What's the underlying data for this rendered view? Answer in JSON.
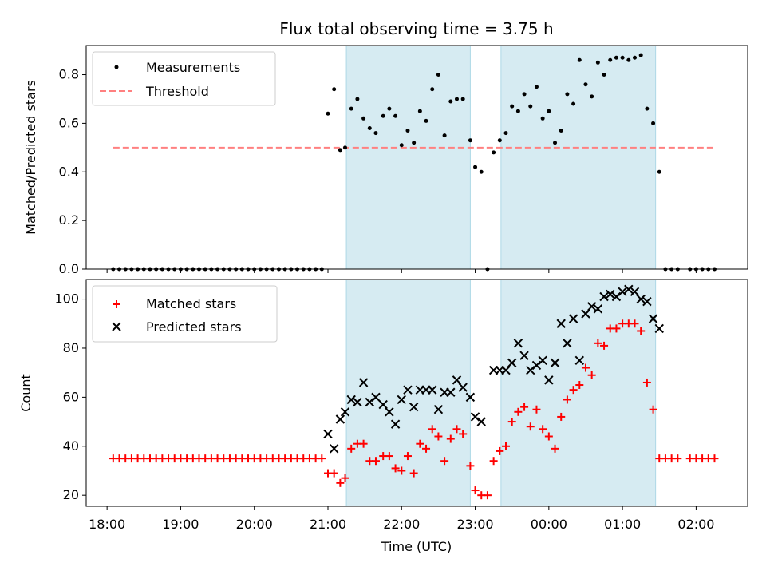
{
  "chart_data": [
    {
      "panel": "top",
      "type": "scatter",
      "title": "Flux total observing time = 3.75 h",
      "ylabel": "Matched/Predicted stars",
      "ylim": [
        0,
        0.92
      ],
      "yticks": [
        "0.0",
        "0.2",
        "0.4",
        "0.6",
        "0.8"
      ],
      "threshold": 0.5,
      "shaded_spans": [
        [
          "21:15",
          "22:56"
        ],
        [
          "23:21",
          "01:27"
        ]
      ],
      "legend": {
        "placement": "upper-left",
        "entries": [
          "Measurements",
          "Threshold"
        ]
      },
      "series": [
        {
          "name": "Measurements",
          "points": [
            [
              "18:05",
              0
            ],
            [
              "18:10",
              0
            ],
            [
              "18:15",
              0
            ],
            [
              "18:20",
              0
            ],
            [
              "18:25",
              0
            ],
            [
              "18:30",
              0
            ],
            [
              "18:35",
              0
            ],
            [
              "18:40",
              0
            ],
            [
              "18:45",
              0
            ],
            [
              "18:50",
              0
            ],
            [
              "18:55",
              0
            ],
            [
              "19:00",
              0
            ],
            [
              "19:05",
              0
            ],
            [
              "19:10",
              0
            ],
            [
              "19:15",
              0
            ],
            [
              "19:20",
              0
            ],
            [
              "19:25",
              0
            ],
            [
              "19:30",
              0
            ],
            [
              "19:35",
              0
            ],
            [
              "19:40",
              0
            ],
            [
              "19:45",
              0
            ],
            [
              "19:50",
              0
            ],
            [
              "19:55",
              0
            ],
            [
              "20:00",
              0
            ],
            [
              "20:05",
              0
            ],
            [
              "20:10",
              0
            ],
            [
              "20:15",
              0
            ],
            [
              "20:20",
              0
            ],
            [
              "20:25",
              0
            ],
            [
              "20:30",
              0
            ],
            [
              "20:35",
              0
            ],
            [
              "20:40",
              0
            ],
            [
              "20:45",
              0
            ],
            [
              "20:50",
              0
            ],
            [
              "20:55",
              0
            ],
            [
              "21:00",
              0.64
            ],
            [
              "21:05",
              0.74
            ],
            [
              "21:10",
              0.49
            ],
            [
              "21:14",
              0.5
            ],
            [
              "21:19",
              0.66
            ],
            [
              "21:24",
              0.7
            ],
            [
              "21:29",
              0.62
            ],
            [
              "21:34",
              0.58
            ],
            [
              "21:39",
              0.56
            ],
            [
              "21:45",
              0.63
            ],
            [
              "21:50",
              0.66
            ],
            [
              "21:55",
              0.63
            ],
            [
              "22:00",
              0.51
            ],
            [
              "22:05",
              0.57
            ],
            [
              "22:10",
              0.52
            ],
            [
              "22:15",
              0.65
            ],
            [
              "22:20",
              0.61
            ],
            [
              "22:25",
              0.74
            ],
            [
              "22:30",
              0.8
            ],
            [
              "22:35",
              0.55
            ],
            [
              "22:40",
              0.69
            ],
            [
              "22:45",
              0.7
            ],
            [
              "22:50",
              0.7
            ],
            [
              "22:56",
              0.53
            ],
            [
              "23:00",
              0.42
            ],
            [
              "23:05",
              0.4
            ],
            [
              "23:10",
              0
            ],
            [
              "23:15",
              0.48
            ],
            [
              "23:20",
              0.53
            ],
            [
              "23:25",
              0.56
            ],
            [
              "23:30",
              0.67
            ],
            [
              "23:35",
              0.65
            ],
            [
              "23:40",
              0.72
            ],
            [
              "23:45",
              0.67
            ],
            [
              "23:50",
              0.75
            ],
            [
              "23:55",
              0.62
            ],
            [
              "00:00",
              0.65
            ],
            [
              "00:05",
              0.52
            ],
            [
              "00:10",
              0.57
            ],
            [
              "00:15",
              0.72
            ],
            [
              "00:20",
              0.68
            ],
            [
              "00:25",
              0.86
            ],
            [
              "00:30",
              0.76
            ],
            [
              "00:35",
              0.71
            ],
            [
              "00:40",
              0.85
            ],
            [
              "00:45",
              0.8
            ],
            [
              "00:50",
              0.86
            ],
            [
              "00:55",
              0.87
            ],
            [
              "01:00",
              0.87
            ],
            [
              "01:05",
              0.86
            ],
            [
              "01:10",
              0.87
            ],
            [
              "01:15",
              0.88
            ],
            [
              "01:20",
              0.66
            ],
            [
              "01:25",
              0.6
            ],
            [
              "01:30",
              0.4
            ],
            [
              "01:35",
              0
            ],
            [
              "01:40",
              0
            ],
            [
              "01:45",
              0
            ],
            [
              "01:55",
              0
            ],
            [
              "02:00",
              0
            ],
            [
              "02:05",
              0
            ],
            [
              "02:10",
              0
            ],
            [
              "02:15",
              0
            ]
          ]
        }
      ]
    },
    {
      "panel": "bottom",
      "type": "scatter",
      "xlabel": "Time (UTC)",
      "ylabel": "Count",
      "ylim": [
        15.5,
        108
      ],
      "yticks": [
        "20",
        "40",
        "60",
        "80",
        "100"
      ],
      "xticks": [
        "18:00",
        "19:00",
        "20:00",
        "21:00",
        "22:00",
        "23:00",
        "00:00",
        "01:00",
        "02:00"
      ],
      "shaded_spans": [
        [
          "21:15",
          "22:56"
        ],
        [
          "23:21",
          "01:27"
        ]
      ],
      "legend": {
        "placement": "upper-left",
        "entries": [
          "Matched stars",
          "Predicted stars"
        ]
      },
      "series": [
        {
          "name": "Matched stars",
          "points": [
            [
              "18:05",
              35
            ],
            [
              "18:10",
              35
            ],
            [
              "18:15",
              35
            ],
            [
              "18:20",
              35
            ],
            [
              "18:25",
              35
            ],
            [
              "18:30",
              35
            ],
            [
              "18:35",
              35
            ],
            [
              "18:40",
              35
            ],
            [
              "18:45",
              35
            ],
            [
              "18:50",
              35
            ],
            [
              "18:55",
              35
            ],
            [
              "19:00",
              35
            ],
            [
              "19:05",
              35
            ],
            [
              "19:10",
              35
            ],
            [
              "19:15",
              35
            ],
            [
              "19:20",
              35
            ],
            [
              "19:25",
              35
            ],
            [
              "19:30",
              35
            ],
            [
              "19:35",
              35
            ],
            [
              "19:40",
              35
            ],
            [
              "19:45",
              35
            ],
            [
              "19:50",
              35
            ],
            [
              "19:55",
              35
            ],
            [
              "20:00",
              35
            ],
            [
              "20:05",
              35
            ],
            [
              "20:10",
              35
            ],
            [
              "20:15",
              35
            ],
            [
              "20:20",
              35
            ],
            [
              "20:25",
              35
            ],
            [
              "20:30",
              35
            ],
            [
              "20:35",
              35
            ],
            [
              "20:40",
              35
            ],
            [
              "20:45",
              35
            ],
            [
              "20:50",
              35
            ],
            [
              "20:55",
              35
            ],
            [
              "21:00",
              29
            ],
            [
              "21:05",
              29
            ],
            [
              "21:10",
              25
            ],
            [
              "21:14",
              27
            ],
            [
              "21:19",
              39
            ],
            [
              "21:24",
              41
            ],
            [
              "21:29",
              41
            ],
            [
              "21:34",
              34
            ],
            [
              "21:39",
              34
            ],
            [
              "21:45",
              36
            ],
            [
              "21:50",
              36
            ],
            [
              "21:55",
              31
            ],
            [
              "22:00",
              30
            ],
            [
              "22:05",
              36
            ],
            [
              "22:10",
              29
            ],
            [
              "22:15",
              41
            ],
            [
              "22:20",
              39
            ],
            [
              "22:25",
              47
            ],
            [
              "22:30",
              44
            ],
            [
              "22:35",
              34
            ],
            [
              "22:40",
              43
            ],
            [
              "22:45",
              47
            ],
            [
              "22:50",
              45
            ],
            [
              "22:56",
              32
            ],
            [
              "23:00",
              22
            ],
            [
              "23:05",
              20
            ],
            [
              "23:10",
              20
            ],
            [
              "23:15",
              34
            ],
            [
              "23:20",
              38
            ],
            [
              "23:25",
              40
            ],
            [
              "23:30",
              50
            ],
            [
              "23:35",
              54
            ],
            [
              "23:40",
              56
            ],
            [
              "23:45",
              48
            ],
            [
              "23:50",
              55
            ],
            [
              "23:55",
              47
            ],
            [
              "00:00",
              44
            ],
            [
              "00:05",
              39
            ],
            [
              "00:10",
              52
            ],
            [
              "00:15",
              59
            ],
            [
              "00:20",
              63
            ],
            [
              "00:25",
              65
            ],
            [
              "00:30",
              72
            ],
            [
              "00:35",
              69
            ],
            [
              "00:40",
              82
            ],
            [
              "00:45",
              81
            ],
            [
              "00:50",
              88
            ],
            [
              "00:55",
              88
            ],
            [
              "01:00",
              90
            ],
            [
              "01:05",
              90
            ],
            [
              "01:10",
              90
            ],
            [
              "01:15",
              87
            ],
            [
              "01:20",
              66
            ],
            [
              "01:25",
              55
            ],
            [
              "01:30",
              35
            ],
            [
              "01:35",
              35
            ],
            [
              "01:40",
              35
            ],
            [
              "01:45",
              35
            ],
            [
              "01:55",
              35
            ],
            [
              "02:00",
              35
            ],
            [
              "02:05",
              35
            ],
            [
              "02:10",
              35
            ],
            [
              "02:15",
              35
            ]
          ]
        },
        {
          "name": "Predicted stars",
          "points": [
            [
              "21:00",
              45
            ],
            [
              "21:05",
              39
            ],
            [
              "21:10",
              51
            ],
            [
              "21:14",
              54
            ],
            [
              "21:19",
              59
            ],
            [
              "21:24",
              58
            ],
            [
              "21:29",
              66
            ],
            [
              "21:34",
              58
            ],
            [
              "21:39",
              60
            ],
            [
              "21:45",
              57
            ],
            [
              "21:50",
              54
            ],
            [
              "21:55",
              49
            ],
            [
              "22:00",
              59
            ],
            [
              "22:05",
              63
            ],
            [
              "22:10",
              56
            ],
            [
              "22:15",
              63
            ],
            [
              "22:20",
              63
            ],
            [
              "22:25",
              63
            ],
            [
              "22:30",
              55
            ],
            [
              "22:35",
              62
            ],
            [
              "22:40",
              62
            ],
            [
              "22:45",
              67
            ],
            [
              "22:50",
              64
            ],
            [
              "22:56",
              60
            ],
            [
              "23:00",
              52
            ],
            [
              "23:05",
              50
            ],
            [
              "23:15",
              71
            ],
            [
              "23:20",
              71
            ],
            [
              "23:25",
              71
            ],
            [
              "23:30",
              74
            ],
            [
              "23:35",
              82
            ],
            [
              "23:40",
              77
            ],
            [
              "23:45",
              71
            ],
            [
              "23:50",
              73
            ],
            [
              "23:55",
              75
            ],
            [
              "00:00",
              67
            ],
            [
              "00:05",
              74
            ],
            [
              "00:10",
              90
            ],
            [
              "00:15",
              82
            ],
            [
              "00:20",
              92
            ],
            [
              "00:25",
              75
            ],
            [
              "00:30",
              94
            ],
            [
              "00:35",
              97
            ],
            [
              "00:40",
              96
            ],
            [
              "00:45",
              101
            ],
            [
              "00:50",
              102
            ],
            [
              "00:55",
              101
            ],
            [
              "01:00",
              103
            ],
            [
              "01:05",
              104
            ],
            [
              "01:10",
              103
            ],
            [
              "01:15",
              100
            ],
            [
              "01:20",
              99
            ],
            [
              "01:25",
              92
            ],
            [
              "01:30",
              88
            ]
          ]
        }
      ]
    }
  ]
}
